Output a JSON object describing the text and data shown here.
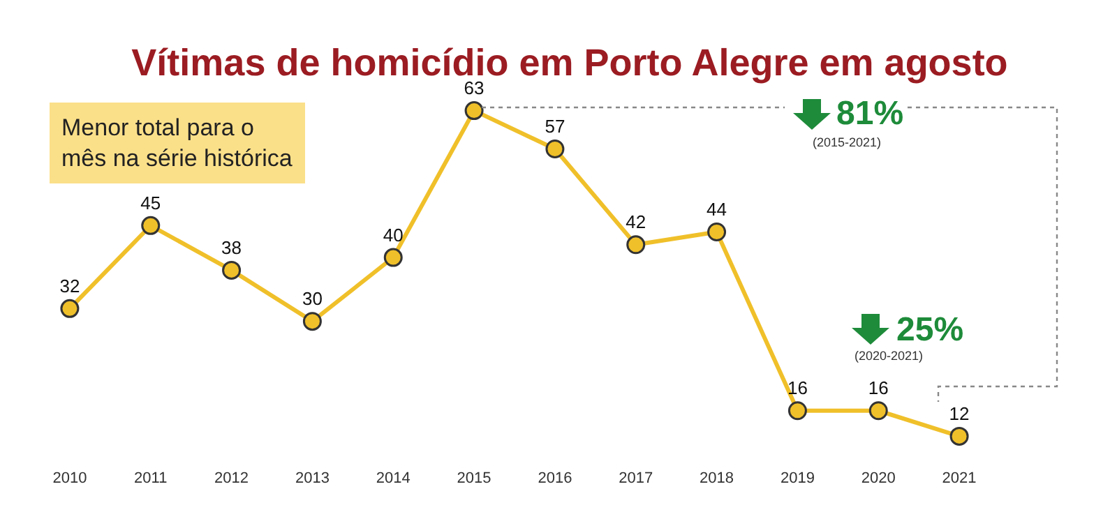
{
  "chart_data": {
    "type": "line",
    "title": "Vítimas de homicídio em Porto Alegre em agosto",
    "categories": [
      "2010",
      "2011",
      "2012",
      "2013",
      "2014",
      "2015",
      "2016",
      "2017",
      "2018",
      "2019",
      "2020",
      "2021"
    ],
    "series": [
      {
        "color": "#f0c02a",
        "values": [
          32,
          45,
          38,
          30,
          40,
          63,
          57,
          42,
          44,
          16,
          16,
          12
        ]
      }
    ],
    "data_labels": true,
    "marker": "circle",
    "line_style": "solid",
    "legend": false,
    "tick_labels": "x",
    "annotations": [
      "Menor total para o mês na série histórica",
      "81%",
      "(2015-2021)",
      "25%",
      "(2020-2021)"
    ]
  }
}
